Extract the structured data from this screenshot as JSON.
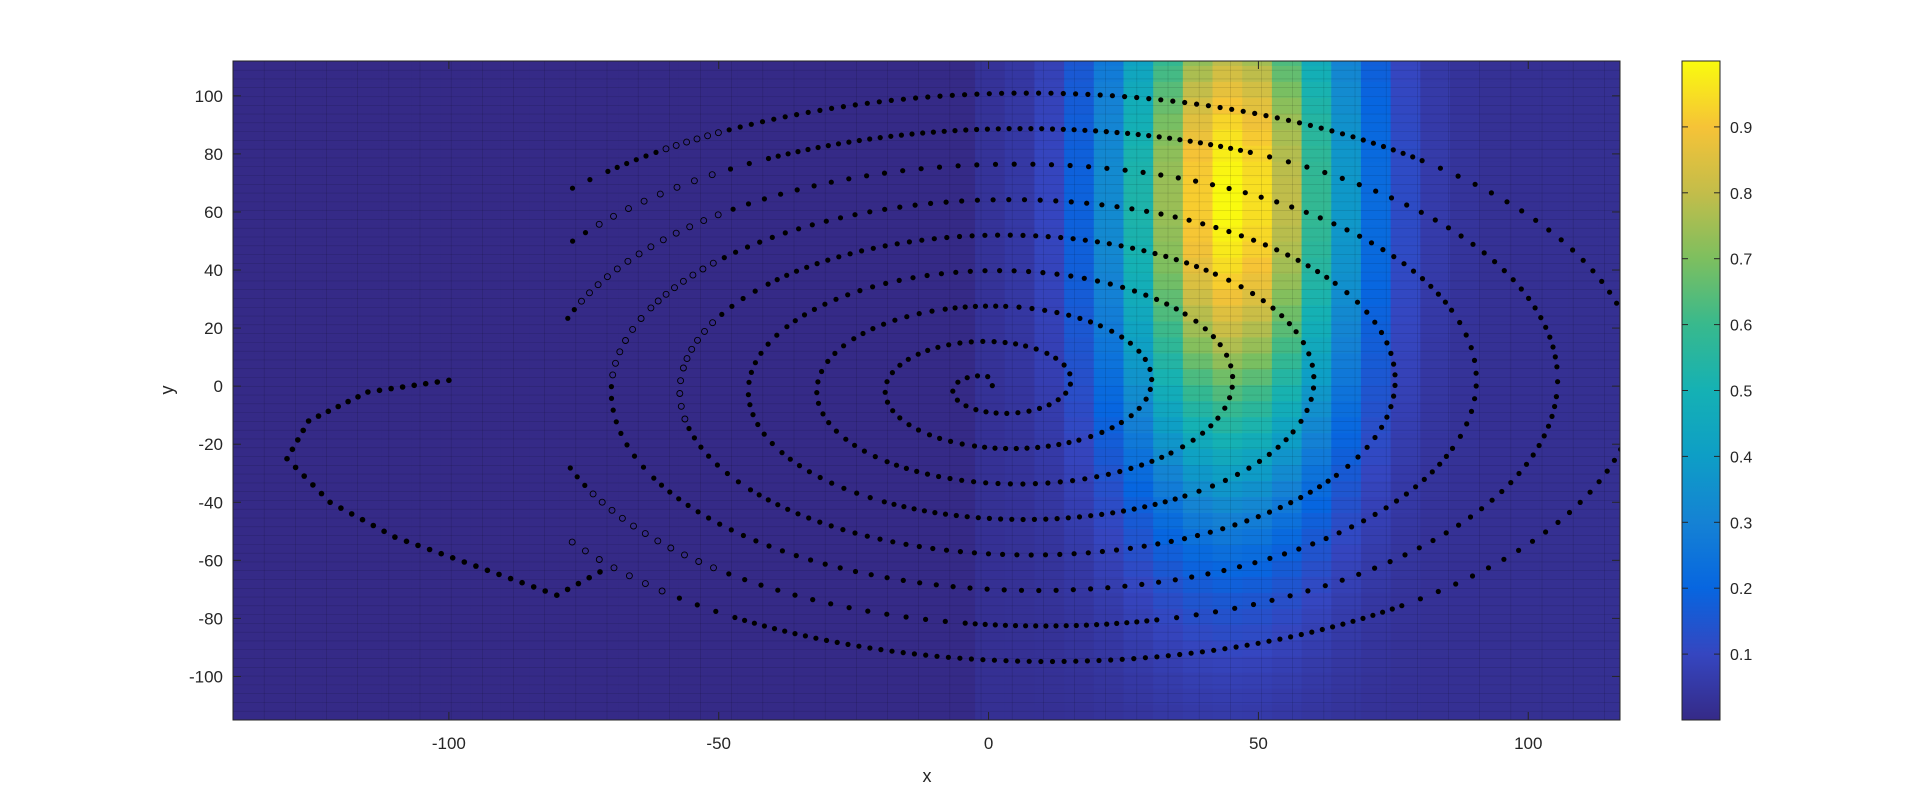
{
  "chart_data": {
    "type": "heatmap",
    "xlabel": "x",
    "ylabel": "y",
    "xlim": [
      -140,
      117
    ],
    "ylim": [
      -115,
      112
    ],
    "xticks": [
      -100,
      -50,
      0,
      50,
      100
    ],
    "yticks": [
      -100,
      -80,
      -60,
      -40,
      -20,
      0,
      20,
      40,
      60,
      80,
      100
    ],
    "xtick_labels": [
      "-100",
      "-50",
      "0",
      "50",
      "100"
    ],
    "ytick_labels": [
      "-100",
      "-80",
      "-60",
      "-40",
      "-20",
      "0",
      "20",
      "40",
      "60",
      "80",
      "100"
    ],
    "heatmap": {
      "description": "smooth field peaking near x=45, y=65",
      "peak": [
        45,
        65
      ],
      "x_spread": 15,
      "y_spread": 70,
      "active_x_min": -5,
      "nonzero_floor": 0.02,
      "grid_lines": true
    },
    "colorbar": {
      "colormap": "parula",
      "range": [
        0,
        1
      ],
      "ticks": [
        0.1,
        0.2,
        0.3,
        0.4,
        0.5,
        0.6,
        0.7,
        0.8,
        0.9
      ],
      "tick_labels": [
        "0.1",
        "0.2",
        "0.3",
        "0.4",
        "0.5",
        "0.6",
        "0.7",
        "0.8",
        "0.9"
      ]
    },
    "scatter": {
      "description": "spiral trajectory of black markers",
      "marker_color": "#000000",
      "spiral": {
        "center": [
          0,
          0
        ],
        "turns": 8.5,
        "outer_radius_x": 118,
        "outer_radius_y": 104,
        "drift_x": 10,
        "open_left_x": -78
      },
      "outer_loop": [
        [
          -100,
          2
        ],
        [
          -115,
          -2
        ],
        [
          -126,
          -12
        ],
        [
          -130,
          -25
        ],
        [
          -122,
          -40
        ],
        [
          -110,
          -52
        ],
        [
          -95,
          -62
        ],
        [
          -80,
          -72
        ],
        [
          -70,
          -62
        ]
      ]
    }
  }
}
